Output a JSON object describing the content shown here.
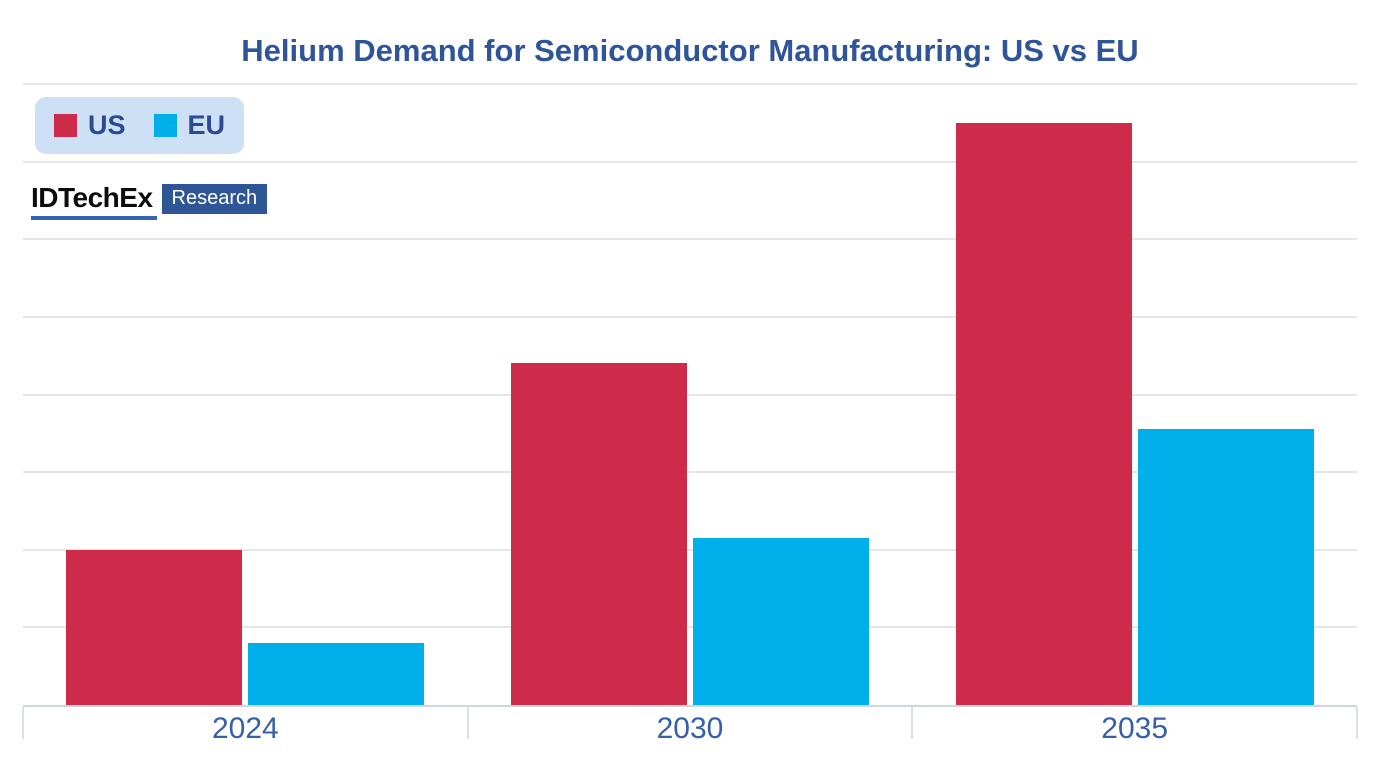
{
  "title": "Helium Demand for Semiconductor Manufacturing: US vs EU",
  "legend": {
    "items": [
      {
        "label": "US",
        "color": "#cd2b49"
      },
      {
        "label": "EU",
        "color": "#00aee9"
      }
    ]
  },
  "branding": {
    "name": "IDTechEx",
    "suffix": "Research"
  },
  "chart_data": {
    "type": "bar",
    "categories": [
      "2024",
      "2030",
      "2035"
    ],
    "series": [
      {
        "name": "US",
        "color": "#cd2b49",
        "values": [
          2.0,
          4.4,
          7.5
        ]
      },
      {
        "name": "EU",
        "color": "#00aee9",
        "values": [
          0.8,
          2.15,
          3.55
        ]
      }
    ],
    "title": "Helium Demand for Semiconductor Manufacturing: US vs EU",
    "xlabel": "",
    "ylabel": "",
    "ylim": [
      0,
      8
    ],
    "grid_step": 1,
    "grid": true,
    "y_tick_labels_visible": false,
    "legend_position": "top-left"
  },
  "colors": {
    "title_text": "#2e5499",
    "axis_label_text": "#3560a8",
    "legend_background": "#cde0f5",
    "legend_text": "#2b4a90",
    "gridline": "#e6e6e6",
    "baseline": "#cfd6df",
    "us_bar": "#cd2b49",
    "eu_bar": "#00aee9",
    "brand_box": "#2e5697",
    "brand_underline": "#3465b4"
  }
}
